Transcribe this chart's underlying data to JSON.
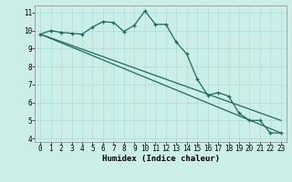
{
  "xlabel": "Humidex (Indice chaleur)",
  "bg_color": "#cceee8",
  "line_color": "#1a6b5e",
  "grid_color": "#aadddd",
  "xlim": [
    -0.5,
    23.5
  ],
  "ylim": [
    3.8,
    11.4
  ],
  "yticks": [
    4,
    5,
    6,
    7,
    8,
    9,
    10,
    11
  ],
  "xticks": [
    0,
    1,
    2,
    3,
    4,
    5,
    6,
    7,
    8,
    9,
    10,
    11,
    12,
    13,
    14,
    15,
    16,
    17,
    18,
    19,
    20,
    21,
    22,
    23
  ],
  "main_x": [
    0,
    1,
    2,
    3,
    4,
    5,
    6,
    7,
    8,
    9,
    10,
    11,
    12,
    13,
    14,
    15,
    16,
    17,
    18,
    19,
    20,
    21,
    22,
    23
  ],
  "main_y": [
    9.8,
    10.0,
    9.9,
    9.85,
    9.8,
    10.2,
    10.5,
    10.45,
    9.95,
    10.3,
    11.1,
    10.35,
    10.35,
    9.35,
    8.7,
    7.3,
    6.4,
    6.55,
    6.35,
    5.4,
    5.0,
    5.0,
    4.3,
    4.3
  ],
  "trend1_x": [
    0,
    23
  ],
  "trend1_y": [
    9.8,
    5.0
  ],
  "trend2_x": [
    0,
    23
  ],
  "trend2_y": [
    9.8,
    4.3
  ]
}
